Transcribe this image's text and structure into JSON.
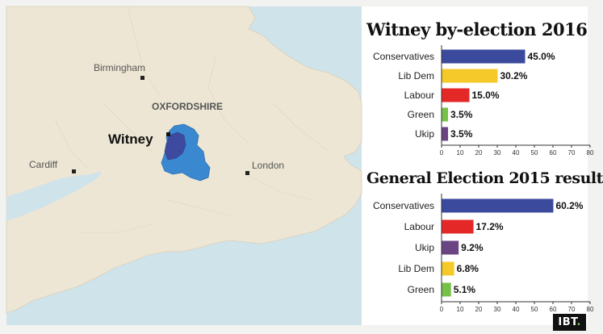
{
  "map": {
    "labels": {
      "birmingham": "Birmingham",
      "oxfordshire": "OXFORDSHIRE",
      "witney": "Witney",
      "cardiff": "Cardiff",
      "london": "London"
    },
    "colors": {
      "land": "#ede6d4",
      "sea": "#cfe3ea",
      "county": "#3a88d0",
      "constituency": "#3d4aa0"
    }
  },
  "chart_data": [
    {
      "type": "bar",
      "orientation": "horizontal",
      "title": "Witney by-election 2016",
      "categories": [
        "Conservatives",
        "Lib Dem",
        "Labour",
        "Green",
        "Ukip"
      ],
      "values": [
        45.0,
        30.2,
        15.0,
        3.5,
        3.5
      ],
      "value_labels": [
        "45.0%",
        "30.2%",
        "15.0%",
        "3.5%",
        "3.5%"
      ],
      "colors": [
        "#3b4a9c",
        "#f6c92b",
        "#e42727",
        "#76c14a",
        "#6a4582"
      ],
      "xlim": [
        0,
        80
      ],
      "xticks": [
        0,
        10,
        20,
        30,
        40,
        50,
        60,
        70,
        80
      ],
      "grid": false
    },
    {
      "type": "bar",
      "orientation": "horizontal",
      "title": "General Election 2015 result",
      "categories": [
        "Conservatives",
        "Labour",
        "Ukip",
        "Lib Dem",
        "Green"
      ],
      "values": [
        60.2,
        17.2,
        9.2,
        6.8,
        5.1
      ],
      "value_labels": [
        "60.2%",
        "17.2%",
        "9.2%",
        "6.8%",
        "5.1%"
      ],
      "colors": [
        "#3b4a9c",
        "#e42727",
        "#6a4582",
        "#f6c92b",
        "#76c14a"
      ],
      "xlim": [
        0,
        80
      ],
      "xticks": [
        0,
        10,
        20,
        30,
        40,
        50,
        60,
        70,
        80
      ],
      "grid": false
    }
  ],
  "logo": {
    "text": "IBT",
    "dot": "."
  }
}
